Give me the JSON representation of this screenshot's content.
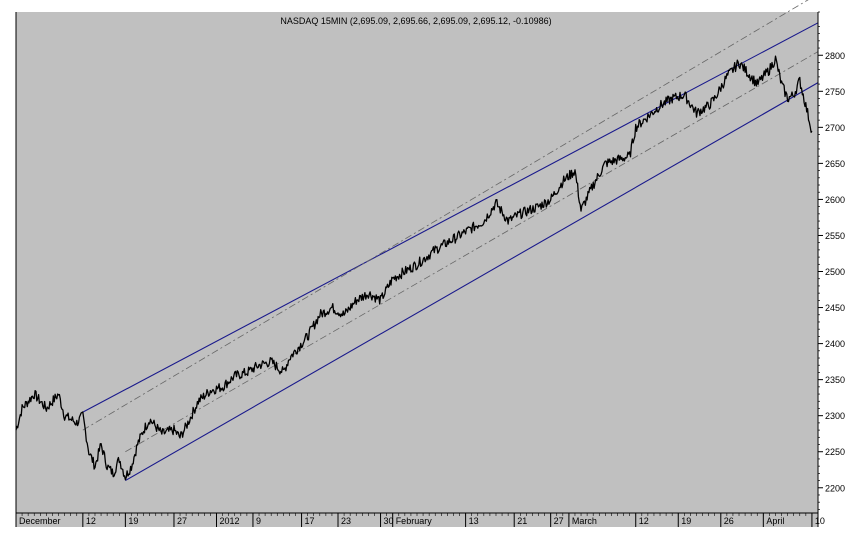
{
  "chart_data": {
    "type": "line",
    "title": "NASDAQ 15MIN (2,695.09, 2,695.66, 2,695.09, 2,695.12, -0.10986)",
    "xlabel": "",
    "ylabel": "",
    "ylim": [
      2165,
      2860
    ],
    "yticks": [
      2200,
      2250,
      2300,
      2350,
      2400,
      2450,
      2500,
      2550,
      2600,
      2650,
      2700,
      2750,
      2800
    ],
    "xlim": [
      "2011-12-01",
      "2012-04-11"
    ],
    "xticks": [
      {
        "date": "2011-12-01",
        "label": "December"
      },
      {
        "date": "2011-12-12",
        "label": "12"
      },
      {
        "date": "2011-12-19",
        "label": "19"
      },
      {
        "date": "2011-12-27",
        "label": "27"
      },
      {
        "date": "2012-01-03",
        "label": "2012"
      },
      {
        "date": "2012-01-09",
        "label": "9"
      },
      {
        "date": "2012-01-17",
        "label": "17"
      },
      {
        "date": "2012-01-23",
        "label": "23"
      },
      {
        "date": "2012-01-30",
        "label": "30"
      },
      {
        "date": "2012-02-01",
        "label": "February"
      },
      {
        "date": "2012-02-13",
        "label": "13"
      },
      {
        "date": "2012-02-21",
        "label": "21"
      },
      {
        "date": "2012-02-27",
        "label": "27"
      },
      {
        "date": "2012-03-01",
        "label": "March"
      },
      {
        "date": "2012-03-12",
        "label": "12"
      },
      {
        "date": "2012-03-19",
        "label": "19"
      },
      {
        "date": "2012-03-26",
        "label": "26"
      },
      {
        "date": "2012-04-02",
        "label": "April"
      },
      {
        "date": "2012-04-10",
        "label": "10"
      }
    ],
    "grid": false,
    "colors": {
      "background": "#c0c0c0",
      "price": "#000000",
      "channel": "#1a1a8c",
      "midline": "#666666"
    },
    "series": [
      {
        "style": "price",
        "x": [
          "2011-12-01",
          "2011-12-02",
          "2011-12-04",
          "2011-12-06",
          "2011-12-08",
          "2011-12-09",
          "2011-12-11",
          "2011-12-12",
          "2011-12-13",
          "2011-12-14",
          "2011-12-15",
          "2011-12-16",
          "2011-12-17",
          "2011-12-18",
          "2011-12-19",
          "2011-12-20",
          "2011-12-21",
          "2011-12-22",
          "2011-12-23",
          "2011-12-25",
          "2011-12-27",
          "2011-12-28",
          "2011-12-29",
          "2011-12-31",
          "2012-01-02",
          "2012-01-04",
          "2012-01-06",
          "2012-01-08",
          "2012-01-10",
          "2012-01-12",
          "2012-01-14",
          "2012-01-15",
          "2012-01-16",
          "2012-01-18",
          "2012-01-20",
          "2012-01-22",
          "2012-01-24",
          "2012-01-26",
          "2012-01-28",
          "2012-01-30",
          "2012-02-01",
          "2012-02-03",
          "2012-02-05",
          "2012-02-08",
          "2012-02-10",
          "2012-02-12",
          "2012-02-14",
          "2012-02-16",
          "2012-02-18",
          "2012-02-20",
          "2012-02-22",
          "2012-02-25",
          "2012-02-27",
          "2012-02-29",
          "2012-03-02",
          "2012-03-03",
          "2012-03-05",
          "2012-03-07",
          "2012-03-09",
          "2012-03-11",
          "2012-03-12",
          "2012-03-14",
          "2012-03-16",
          "2012-03-18",
          "2012-03-20",
          "2012-03-22",
          "2012-03-24",
          "2012-03-25",
          "2012-03-27",
          "2012-03-29",
          "2012-03-30",
          "2012-04-01",
          "2012-04-02",
          "2012-04-03",
          "2012-04-04",
          "2012-04-05",
          "2012-04-06",
          "2012-04-07",
          "2012-04-08",
          "2012-04-09",
          "2012-04-10"
        ],
        "y": [
          2280,
          2310,
          2330,
          2310,
          2330,
          2300,
          2290,
          2300,
          2250,
          2230,
          2260,
          2230,
          2220,
          2240,
          2215,
          2230,
          2260,
          2280,
          2295,
          2275,
          2280,
          2270,
          2285,
          2320,
          2335,
          2340,
          2355,
          2360,
          2370,
          2375,
          2360,
          2380,
          2390,
          2410,
          2440,
          2450,
          2440,
          2460,
          2470,
          2460,
          2490,
          2500,
          2510,
          2530,
          2540,
          2550,
          2560,
          2570,
          2595,
          2570,
          2580,
          2590,
          2600,
          2625,
          2640,
          2585,
          2620,
          2650,
          2655,
          2660,
          2700,
          2715,
          2730,
          2740,
          2745,
          2720,
          2730,
          2740,
          2770,
          2790,
          2780,
          2760,
          2770,
          2780,
          2795,
          2760,
          2740,
          2745,
          2765,
          2730,
          2695
        ]
      },
      {
        "style": "channel",
        "x": [
          "2011-12-12",
          "2012-04-11"
        ],
        "y": [
          2305,
          2845
        ]
      },
      {
        "style": "channel",
        "x": [
          "2011-12-19",
          "2012-04-11"
        ],
        "y": [
          2210,
          2762
        ]
      },
      {
        "style": "midline",
        "x": [
          "2011-12-19",
          "2012-04-11"
        ],
        "y": [
          2250,
          2805
        ]
      },
      {
        "style": "midline",
        "x": [
          "2011-12-12",
          "2012-04-11"
        ],
        "y": [
          2280,
          2885
        ]
      }
    ]
  }
}
